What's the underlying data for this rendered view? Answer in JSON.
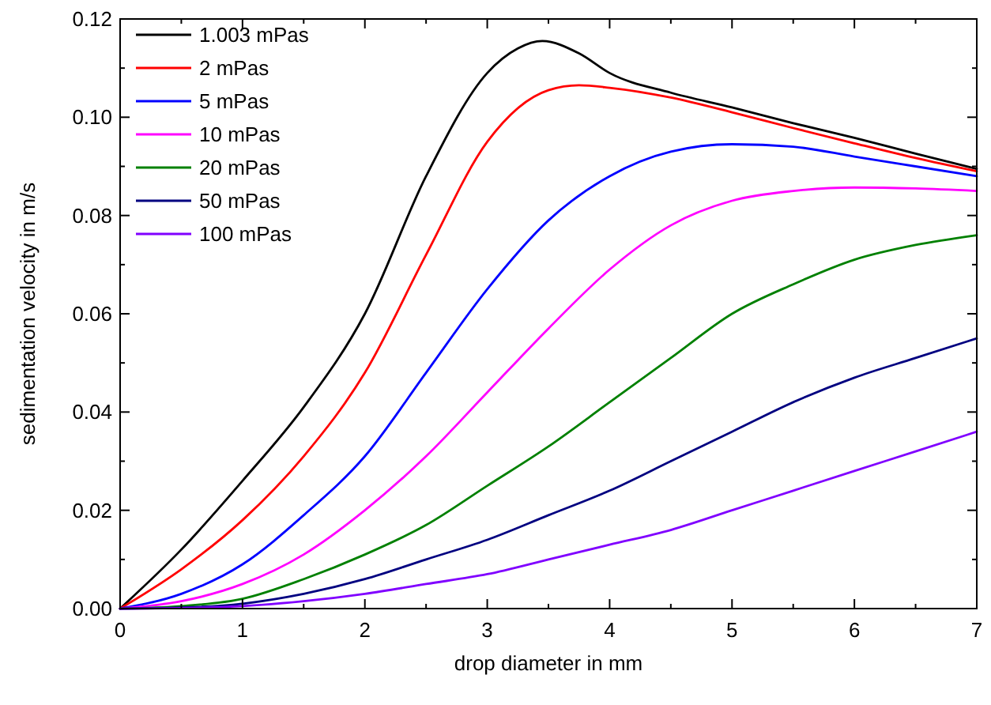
{
  "chart_data": {
    "type": "line",
    "xlabel": "drop diameter in mm",
    "ylabel": "sedimentation velocity in m/s",
    "xlim": [
      0,
      7
    ],
    "ylim": [
      0,
      0.12
    ],
    "xticks": [
      0,
      {
        "value": 0.5,
        "label": null
      },
      1,
      {
        "value": 1.5,
        "label": null
      },
      2,
      {
        "value": 2.5,
        "label": null
      },
      3,
      {
        "value": 3.5,
        "label": null
      },
      4,
      {
        "value": 4.5,
        "label": null
      },
      5,
      {
        "value": 5.5,
        "label": null
      },
      6,
      {
        "value": 6.5,
        "label": null
      },
      7
    ],
    "yticks": [
      {
        "value": 0,
        "label": "0.00"
      },
      {
        "value": 0.01,
        "label": null
      },
      {
        "value": 0.02,
        "label": "0.02"
      },
      {
        "value": 0.03,
        "label": null
      },
      {
        "value": 0.04,
        "label": "0.04"
      },
      {
        "value": 0.05,
        "label": null
      },
      {
        "value": 0.06,
        "label": "0.06"
      },
      {
        "value": 0.07,
        "label": null
      },
      {
        "value": 0.08,
        "label": "0.08"
      },
      {
        "value": 0.09,
        "label": null
      },
      {
        "value": 0.1,
        "label": "0.10"
      },
      {
        "value": 0.11,
        "label": null
      },
      {
        "value": 0.12,
        "label": "0.12"
      }
    ],
    "legend": "top left",
    "grid": false,
    "marker": "none",
    "line_style": "solid",
    "series": [
      {
        "name": "1.003 mPas",
        "color": "#000000",
        "x": [
          0,
          0.5,
          1,
          1.5,
          2,
          2.5,
          3,
          3.25,
          3.45,
          3.75,
          4,
          4.5,
          5,
          5.5,
          6,
          6.5,
          7
        ],
        "values": [
          0,
          0.012,
          0.026,
          0.041,
          0.06,
          0.088,
          0.109,
          0.114,
          0.1155,
          0.113,
          0.109,
          0.105,
          0.102,
          0.0988,
          0.0958,
          0.0926,
          0.0895
        ]
      },
      {
        "name": "2 mPas",
        "color": "#ff0000",
        "x": [
          0,
          0.5,
          1,
          1.5,
          2,
          2.5,
          3,
          3.5,
          3.75,
          4,
          4.5,
          5,
          5.5,
          6,
          6.5,
          7
        ],
        "values": [
          0,
          0.008,
          0.018,
          0.031,
          0.048,
          0.072,
          0.095,
          0.1055,
          0.1065,
          0.106,
          0.104,
          0.101,
          0.0978,
          0.0947,
          0.0917,
          0.089
        ]
      },
      {
        "name": "5 mPas",
        "color": "#0000ff",
        "x": [
          0,
          0.5,
          1,
          1.5,
          2,
          2.5,
          3,
          3.5,
          4,
          4.5,
          5,
          5.5,
          6,
          6.5,
          7
        ],
        "values": [
          0,
          0.003,
          0.009,
          0.019,
          0.031,
          0.048,
          0.065,
          0.079,
          0.088,
          0.093,
          0.0945,
          0.094,
          0.092,
          0.09,
          0.088
        ]
      },
      {
        "name": "10 mPas",
        "color": "#ff00ff",
        "x": [
          0,
          0.5,
          1,
          1.5,
          2,
          2.5,
          3,
          3.5,
          4,
          4.5,
          5,
          5.5,
          6,
          6.5,
          7
        ],
        "values": [
          0,
          0.0015,
          0.005,
          0.011,
          0.02,
          0.031,
          0.044,
          0.057,
          0.069,
          0.078,
          0.083,
          0.085,
          0.0857,
          0.0855,
          0.085
        ]
      },
      {
        "name": "20 mPas",
        "color": "#008000",
        "x": [
          0,
          0.5,
          1,
          1.5,
          2,
          2.5,
          3,
          3.5,
          4,
          4.5,
          5,
          5.5,
          6,
          6.5,
          7
        ],
        "values": [
          0,
          0.0005,
          0.002,
          0.006,
          0.011,
          0.017,
          0.025,
          0.033,
          0.042,
          0.051,
          0.06,
          0.066,
          0.071,
          0.074,
          0.076
        ]
      },
      {
        "name": "50 mPas",
        "color": "#000080",
        "x": [
          0,
          0.5,
          1,
          1.5,
          2,
          2.5,
          3,
          3.5,
          4,
          4.5,
          5,
          5.5,
          6,
          6.5,
          7
        ],
        "values": [
          0,
          0.0002,
          0.001,
          0.003,
          0.006,
          0.01,
          0.014,
          0.019,
          0.024,
          0.03,
          0.036,
          0.042,
          0.047,
          0.051,
          0.055
        ]
      },
      {
        "name": "100 mPas",
        "color": "#8000ff",
        "x": [
          0,
          0.5,
          1,
          1.5,
          2,
          2.5,
          3,
          3.5,
          4,
          4.5,
          5,
          5.5,
          6,
          6.5,
          7
        ],
        "values": [
          0,
          0.0001,
          0.0005,
          0.0015,
          0.003,
          0.005,
          0.007,
          0.01,
          0.013,
          0.016,
          0.02,
          0.024,
          0.028,
          0.032,
          0.036
        ]
      }
    ]
  }
}
